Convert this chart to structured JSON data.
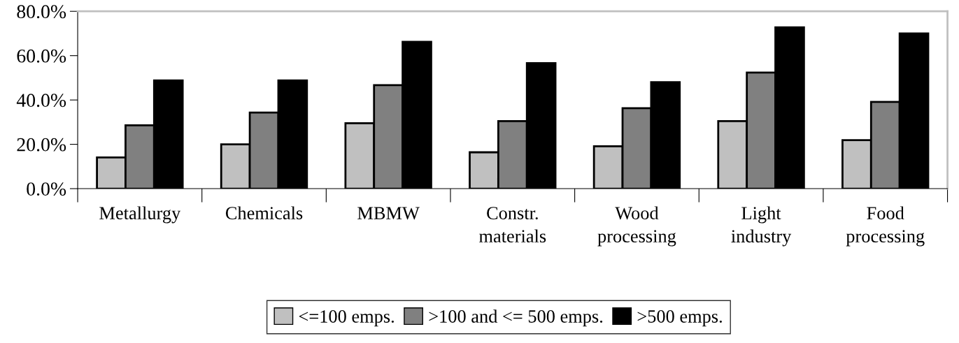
{
  "chart_data": {
    "type": "bar",
    "categories": [
      "Metallurgy",
      "Chemicals",
      "MBMW",
      "Constr.\nmaterials",
      "Wood\nprocessing",
      "Light\nindustry",
      "Food\nprocessing"
    ],
    "series": [
      {
        "name": "<=100 emps.",
        "color": "#c0c0c0",
        "values": [
          14.1,
          20.0,
          29.5,
          16.4,
          19.1,
          30.5,
          21.9
        ]
      },
      {
        "name": ">100 and <= 500 emps.",
        "color": "#808080",
        "values": [
          28.6,
          34.3,
          46.7,
          30.5,
          36.3,
          52.4,
          39.1
        ]
      },
      {
        "name": ">500 emps.",
        "color": "#000000",
        "values": [
          48.8,
          48.8,
          66.2,
          56.6,
          48.0,
          72.8,
          70.0
        ]
      }
    ],
    "ylim": [
      0,
      80
    ],
    "yticks": [
      {
        "value": 0,
        "label": "0.0%"
      },
      {
        "value": 20,
        "label": "20.0%"
      },
      {
        "value": 40,
        "label": "40.0%"
      },
      {
        "value": 60,
        "label": "60.0%"
      },
      {
        "value": 80,
        "label": "80.0%"
      }
    ],
    "grid": false,
    "legend": "bottom"
  }
}
